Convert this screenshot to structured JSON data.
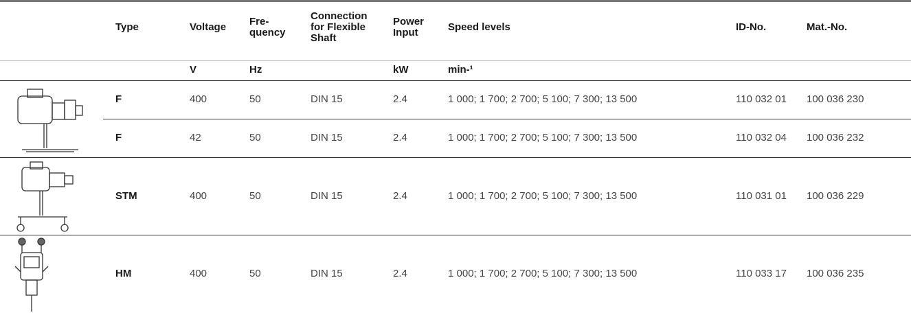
{
  "table": {
    "headers": [
      "Type",
      "Voltage",
      "Fre-\nquency",
      "Connection\nfor Flexible\nShaft",
      "Power\nInput",
      "Speed levels",
      "ID-No.",
      "Mat.-No."
    ],
    "units": [
      "V",
      "Hz",
      "kW",
      "min-¹"
    ],
    "rows": [
      [
        "F",
        "400",
        "50",
        "DIN 15",
        "2.4",
        "1 000; 1 700; 2 700; 5 100; 7 300; 13 500",
        "110 032 01",
        "100 036 230"
      ],
      [
        "F",
        "42",
        "50",
        "DIN 15",
        "2.4",
        "1 000; 1 700; 2 700; 5 100; 7 300; 13 500",
        "110 032 04",
        "100 036 232"
      ],
      [
        "STM",
        "400",
        "50",
        "DIN 15",
        "2.4",
        "1 000; 1 700; 2 700; 5 100; 7 300; 13 500",
        "110 031 01",
        "100 036 229"
      ],
      [
        "HM",
        "400",
        "50",
        "DIN 15",
        "2.4",
        "1 000; 1 700; 2 700; 5 100; 7 300; 13 500",
        "110 033 17",
        "100 036 235"
      ]
    ]
  }
}
